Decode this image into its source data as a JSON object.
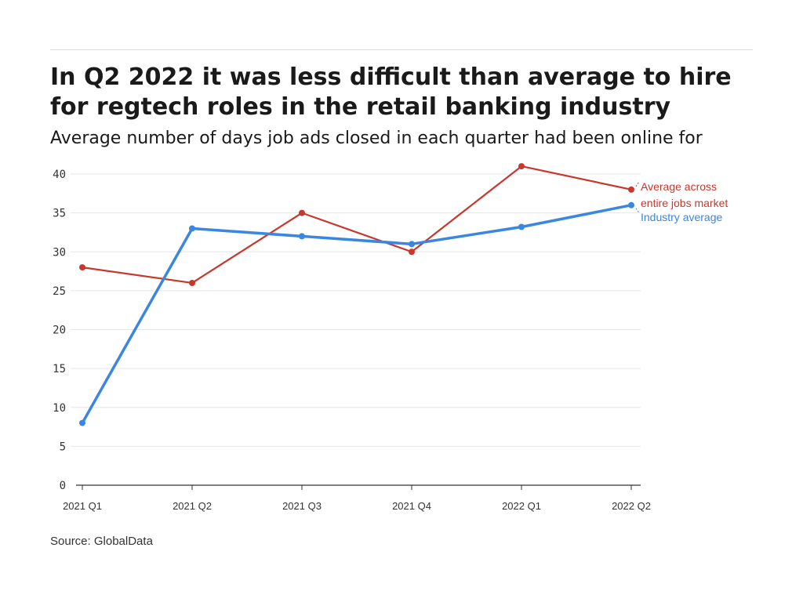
{
  "header": {
    "title": "In Q2 2022 it was less difficult than average to hire for regtech roles in the retail banking industry",
    "subtitle": "Average number of days job ads closed in each quarter had been online for"
  },
  "footer": {
    "source": "Source: GlobalData"
  },
  "colors": {
    "jobs_market": "#c8372d",
    "industry": "#3a86e0",
    "grid": "#e6e6e6",
    "axis": "#333333"
  },
  "chart_data": {
    "type": "line",
    "title": "In Q2 2022 it was less difficult than average to hire for regtech roles in the retail banking industry",
    "subtitle": "Average number of days job ads closed in each quarter had been online for",
    "categories": [
      "2021 Q1",
      "2021 Q2",
      "2021 Q3",
      "2021 Q4",
      "2022 Q1",
      "2022 Q2"
    ],
    "ylim": [
      0,
      40
    ],
    "yticks": [
      0,
      5,
      10,
      15,
      20,
      25,
      30,
      35,
      40
    ],
    "grid": true,
    "xlabel": "",
    "ylabel": "",
    "series": [
      {
        "key": "jobs_market",
        "name": "Average across entire jobs market",
        "label_lines": [
          "Average across",
          "entire jobs market"
        ],
        "values": [
          28,
          26,
          35,
          30,
          41,
          38
        ]
      },
      {
        "key": "industry",
        "name": "Industry average",
        "label_lines": [
          "Industry average"
        ],
        "values": [
          8,
          33,
          32,
          31,
          33.2,
          36
        ]
      }
    ]
  }
}
